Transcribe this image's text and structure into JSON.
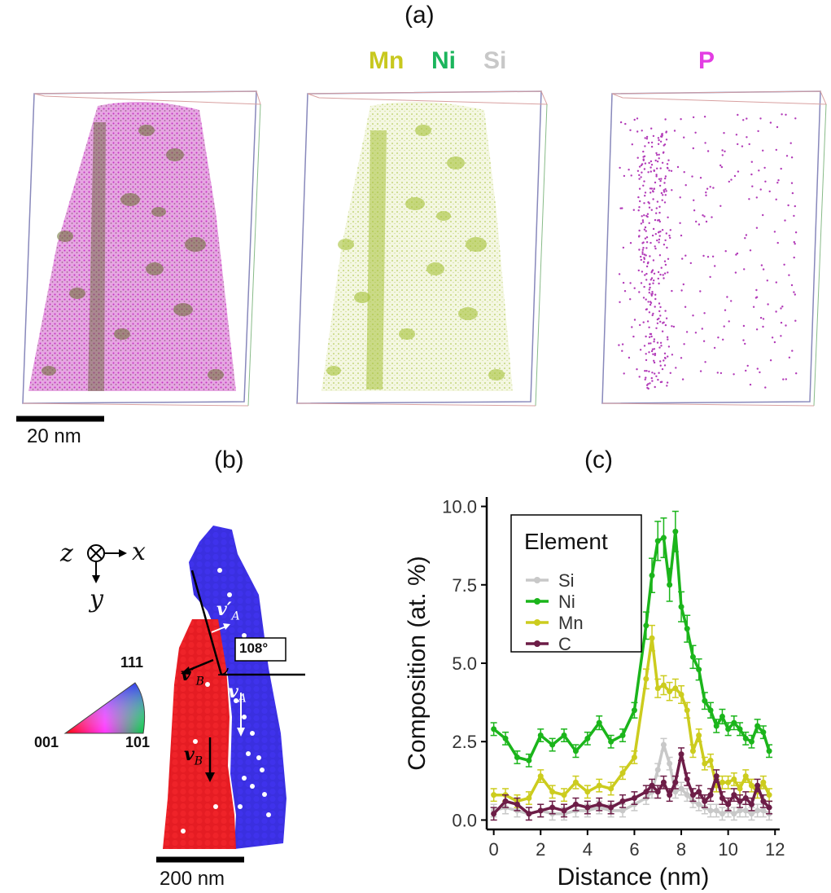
{
  "panel_a": {
    "label": "(a)",
    "elements_group": [
      {
        "symbol": "Mn",
        "color": "#c8c81e"
      },
      {
        "symbol": "Ni",
        "color": "#1bb55c"
      },
      {
        "symbol": "Si",
        "color": "#c8c8c8"
      }
    ],
    "element_p": {
      "symbol": "P",
      "color": "#e33de3"
    },
    "scale_bar": "20 nm"
  },
  "panel_b": {
    "label": "(b)",
    "axes": {
      "z": "z",
      "x": "x",
      "y": "y"
    },
    "angle_label": "108°",
    "vectors": {
      "vA_prime": "v′",
      "vA_prime_sub": "A",
      "vA": "v",
      "vA_sub": "A",
      "vB_prime": "v′",
      "vB_prime_sub": "B",
      "vB": "v",
      "vB_sub": "B"
    },
    "ipf": {
      "top": "111",
      "left": "001",
      "right": "101"
    },
    "scale_bar": "200 nm",
    "colors": {
      "grain_a": "#3a2fe0",
      "grain_b": "#e51c23"
    }
  },
  "panel_c": {
    "label": "(c)"
  },
  "chart_data": {
    "type": "line",
    "title": "",
    "xlabel": "Distance (nm)",
    "ylabel": "Composition (at. %)",
    "xlim": [
      -0.3,
      12.2
    ],
    "ylim": [
      -0.3,
      10.3
    ],
    "xticks": [
      0,
      2,
      4,
      6,
      8,
      10,
      12
    ],
    "yticks": [
      0.0,
      2.5,
      5.0,
      7.5,
      10.0
    ],
    "xtick_labels": [
      "0",
      "2",
      "4",
      "6",
      "8",
      "10",
      "12"
    ],
    "ytick_labels": [
      "0.0",
      "2.5",
      "5.0",
      "7.5",
      "10.0"
    ],
    "legend_title": "Element",
    "legend_position": "top-left",
    "x": [
      0,
      0.5,
      1,
      1.5,
      2,
      2.5,
      3,
      3.5,
      4,
      4.5,
      5,
      5.5,
      6,
      6.5,
      6.75,
      7,
      7.25,
      7.5,
      7.75,
      8,
      8.25,
      8.5,
      8.75,
      9,
      9.25,
      9.5,
      9.75,
      10,
      10.25,
      10.5,
      10.75,
      11,
      11.25,
      11.5,
      11.75
    ],
    "series": [
      {
        "name": "Si",
        "color": "#c8c8c8",
        "values": [
          0.3,
          0.4,
          0.3,
          0.2,
          0.3,
          0.2,
          0.2,
          0.3,
          0.3,
          0.4,
          0.3,
          0.3,
          0.5,
          0.7,
          0.9,
          1.6,
          2.4,
          1.8,
          0.9,
          1.0,
          0.8,
          0.6,
          0.5,
          0.4,
          0.3,
          0.3,
          0.2,
          0.3,
          0.2,
          0.3,
          0.3,
          0.2,
          0.3,
          0.3,
          0.2
        ]
      },
      {
        "name": "Ni",
        "color": "#1bb51b",
        "values": [
          2.9,
          2.6,
          2.0,
          1.9,
          2.7,
          2.4,
          2.7,
          2.2,
          2.6,
          3.1,
          2.5,
          2.7,
          3.5,
          6.2,
          7.8,
          8.9,
          9.0,
          7.5,
          9.2,
          6.8,
          6.1,
          5.2,
          4.8,
          3.8,
          3.5,
          3.0,
          3.3,
          2.9,
          3.1,
          2.9,
          2.6,
          2.5,
          3.0,
          2.8,
          2.2
        ]
      },
      {
        "name": "Mn",
        "color": "#cccc1e",
        "values": [
          0.8,
          0.8,
          0.6,
          0.7,
          1.4,
          0.9,
          0.8,
          1.2,
          0.9,
          1.1,
          1.0,
          1.5,
          2.0,
          4.5,
          5.8,
          4.2,
          4.3,
          4.1,
          4.2,
          4.0,
          3.5,
          2.2,
          2.7,
          1.8,
          1.9,
          1.1,
          1.2,
          1.2,
          1.3,
          1.0,
          1.4,
          1.1,
          0.9,
          1.2,
          0.8
        ]
      },
      {
        "name": "C",
        "color": "#6d1d47",
        "values": [
          0.2,
          0.6,
          0.5,
          0.2,
          0.3,
          0.4,
          0.3,
          0.5,
          0.4,
          0.5,
          0.4,
          0.6,
          0.7,
          0.9,
          1.1,
          0.9,
          1.2,
          0.8,
          1.2,
          2.1,
          1.3,
          0.8,
          0.9,
          0.6,
          0.8,
          1.4,
          0.7,
          0.5,
          0.8,
          0.6,
          0.7,
          0.5,
          1.1,
          0.6,
          0.4
        ]
      }
    ]
  }
}
